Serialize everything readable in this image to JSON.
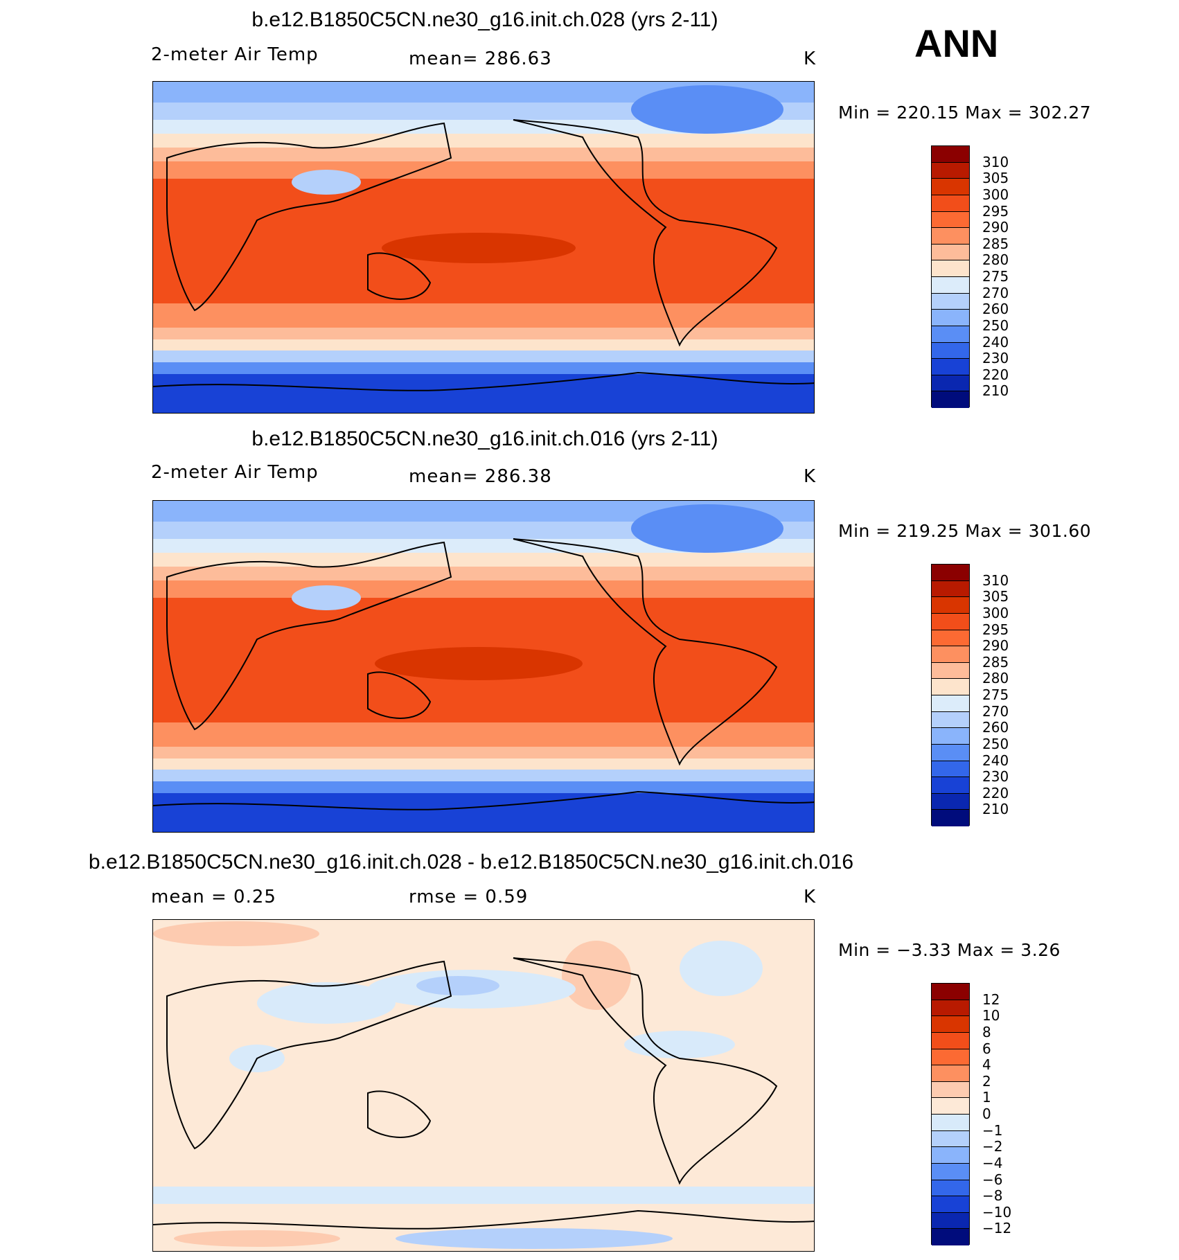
{
  "season": "ANN",
  "panels": [
    {
      "title": "b.e12.B1850C5CN.ne30_g16.init.ch.028 (yrs 2-11)",
      "left": "2-meter Air Temp",
      "center": "mean=  286.63",
      "units": "K",
      "minmax": "Min  =  220.15  Max  =  302.27",
      "kind": "abs"
    },
    {
      "title": "b.e12.B1850C5CN.ne30_g16.init.ch.016 (yrs 2-11)",
      "left": "2-meter Air Temp",
      "center": "mean=  286.38",
      "units": "K",
      "minmax": "Min  =  219.25  Max  =  301.60",
      "kind": "abs"
    },
    {
      "title": "b.e12.B1850C5CN.ne30_g16.init.ch.028 - b.e12.B1850C5CN.ne30_g16.init.ch.016",
      "left": "mean =     0.25",
      "center": "rmse =     0.59",
      "units": "K",
      "minmax": "Min  =    −3.33  Max  =     3.26",
      "kind": "diff"
    }
  ],
  "colorbars": {
    "abs": {
      "labels": [
        "310",
        "305",
        "300",
        "295",
        "290",
        "285",
        "280",
        "275",
        "270",
        "260",
        "250",
        "240",
        "230",
        "220",
        "210"
      ],
      "colors": [
        "#8b0000",
        "#b81a00",
        "#d93500",
        "#f24e1a",
        "#fc6a33",
        "#fd9060",
        "#fdbc9a",
        "#fde4cc",
        "#dcecfa",
        "#b4d0fb",
        "#8ab4fb",
        "#5a8ef5",
        "#3367ea",
        "#1842d6",
        "#0a27b0",
        "#000c7c"
      ]
    },
    "diff": {
      "labels": [
        "12",
        "10",
        "8",
        "6",
        "4",
        "2",
        "1",
        "0",
        "−1",
        "−2",
        "−4",
        "−6",
        "−8",
        "−10",
        "−12"
      ],
      "colors": [
        "#8b0000",
        "#b81a00",
        "#d93500",
        "#f24e1a",
        "#fc6a33",
        "#fd9060",
        "#fdcbb0",
        "#fde9d7",
        "#d8eafa",
        "#b4d0fb",
        "#8ab4fb",
        "#5a8ef5",
        "#3367ea",
        "#1842d6",
        "#0a27b0",
        "#000c7c"
      ]
    }
  }
}
